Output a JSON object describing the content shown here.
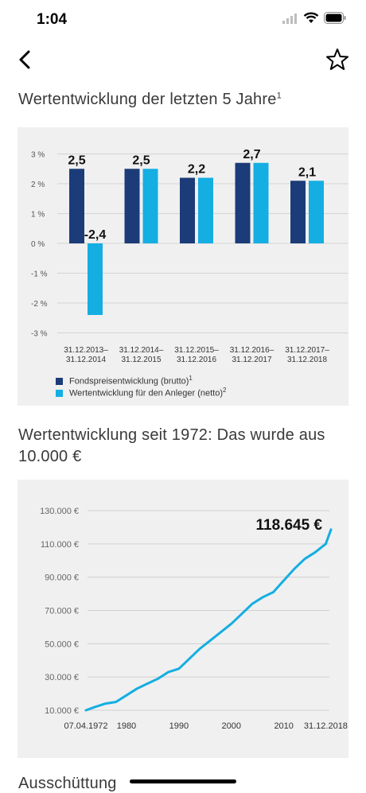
{
  "status": {
    "time": "1:04"
  },
  "nav": {
    "back_icon": "chevron-left-icon",
    "favorite_icon": "star-outline-icon"
  },
  "section1": {
    "title": "Wertentwicklung der letzten 5 Jahre",
    "title_sup": "1"
  },
  "section2": {
    "title": "Wertentwicklung seit 1972: Das wurde aus 10.000 €"
  },
  "section3": {
    "title": "Ausschüttung"
  },
  "colors": {
    "dark_bar": "#1b3c78",
    "light_bar": "#14aee2",
    "panel": "#f0f0f0"
  },
  "chart_data": [
    {
      "type": "bar",
      "categories": [
        "31.12.2013–\n31.12.2014",
        "31.12.2014–\n31.12.2015",
        "31.12.2015–\n31.12.2016",
        "31.12.2016–\n31.12.2017",
        "31.12.2017–\n31.12.2018"
      ],
      "series": [
        {
          "name": "Fondspreisentwicklung (brutto)",
          "sup": "1",
          "values": [
            2.5,
            2.5,
            2.2,
            2.7,
            2.1
          ]
        },
        {
          "name": "Wertentwicklung für den Anleger (netto)",
          "sup": "2",
          "values": [
            -2.4,
            2.5,
            2.2,
            2.7,
            2.1
          ]
        }
      ],
      "data_labels": [
        "2,5",
        "-2,4",
        "2,5",
        "2,2",
        "2,7",
        "2,1"
      ],
      "yticks": [
        "3 %",
        "2 %",
        "1 %",
        "0 %",
        "-1 %",
        "-2 %",
        "-3 %"
      ],
      "ylim": [
        -3,
        3
      ],
      "grid": true,
      "legend": "bottom-left"
    },
    {
      "type": "line",
      "x": [
        1972,
        1974,
        1976,
        1978,
        1980,
        1982,
        1984,
        1986,
        1988,
        1990,
        1992,
        1994,
        1996,
        1998,
        2000,
        2002,
        2004,
        2006,
        2008,
        2010,
        2012,
        2014,
        2016,
        2018,
        2019
      ],
      "y": [
        10000,
        12000,
        14000,
        15000,
        19000,
        23000,
        26000,
        29000,
        33000,
        35000,
        41000,
        47000,
        52000,
        57000,
        62000,
        68000,
        74000,
        78000,
        81000,
        88000,
        95000,
        101000,
        105000,
        110000,
        118645
      ],
      "end_label": "118.645 €",
      "xticks": [
        "07.04.1972",
        "1980",
        "1990",
        "2000",
        "2010",
        "31.12.2018"
      ],
      "yticks": [
        "130.000 €",
        "110.000 €",
        "90.000 €",
        "70.000 €",
        "50.000 €",
        "30.000 €",
        "10.000 €"
      ],
      "ylim": [
        10000,
        130000
      ],
      "grid": true
    }
  ]
}
